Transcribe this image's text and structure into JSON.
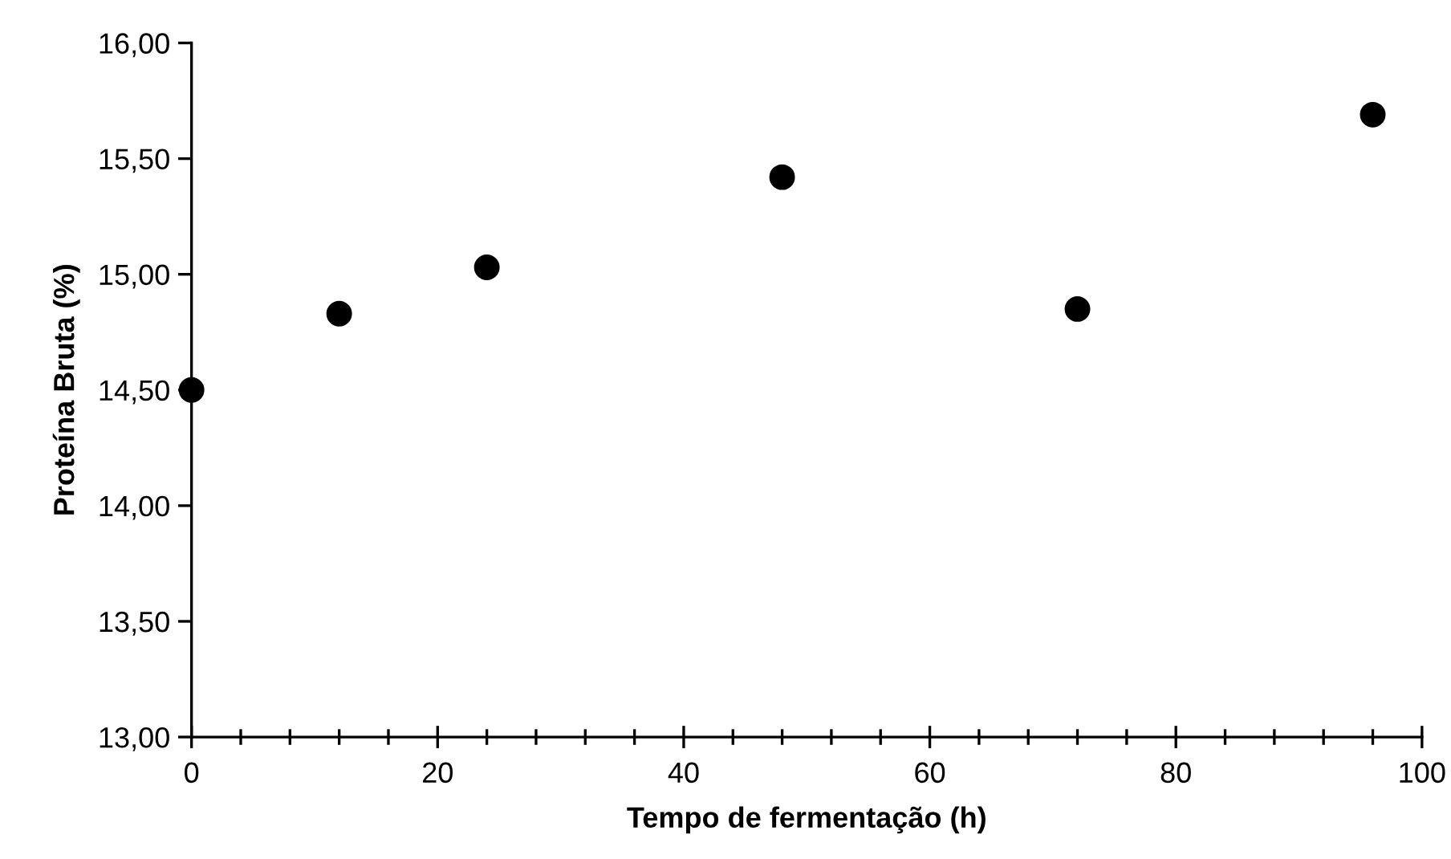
{
  "chart_data": {
    "type": "scatter",
    "xlabel": "Tempo de fermentação (h)",
    "ylabel": "Proteína Bruta (%)",
    "x": [
      0,
      12,
      24,
      48,
      72,
      96
    ],
    "series": [
      {
        "color": "#000000",
        "values": [
          14.5,
          14.83,
          15.03,
          15.42,
          14.85,
          15.69
        ]
      }
    ],
    "xlim": [
      0,
      100
    ],
    "xticks": [
      0,
      20,
      40,
      60,
      80,
      100
    ],
    "ylim": [
      13,
      16
    ],
    "yticks": [
      {
        "value": 13,
        "label": "13,00"
      },
      {
        "value": 13.5,
        "label": "13,50"
      },
      {
        "value": 14,
        "label": "14,00"
      },
      {
        "value": 14.5,
        "label": "14,50"
      },
      {
        "value": 15,
        "label": "15,00"
      },
      {
        "value": 15.5,
        "label": "15,50"
      },
      {
        "value": 16,
        "label": "16,00"
      }
    ],
    "marker": "circle",
    "grid": false,
    "legend": false
  }
}
